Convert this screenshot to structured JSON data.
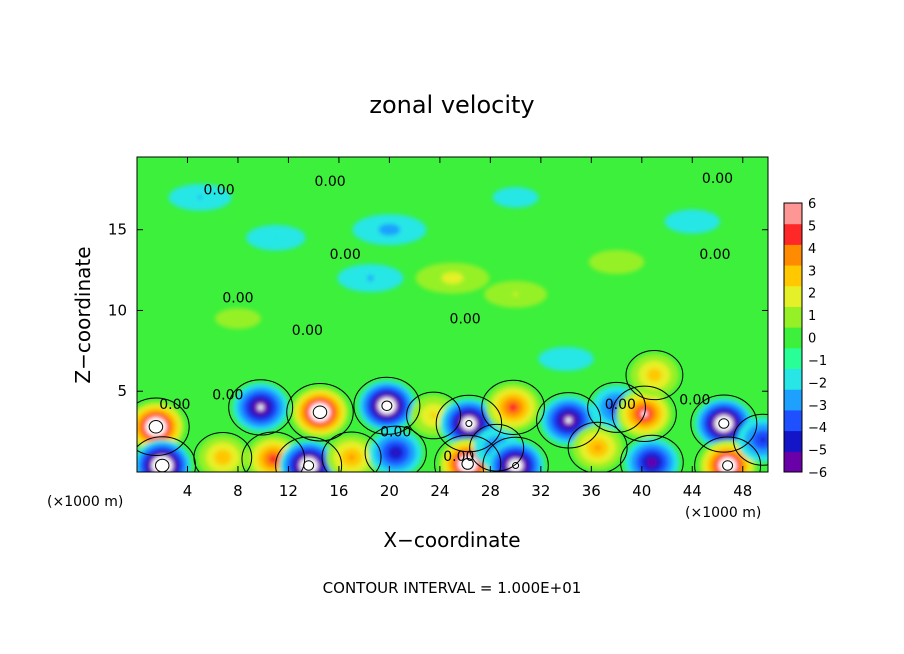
{
  "chart_data": {
    "type": "heatmap",
    "title": "zonal velocity",
    "xlabel": "X−coordinate",
    "ylabel": "Z−coordinate",
    "x_unit_left": "(×1000 m)",
    "x_unit_right": "(×1000 m)",
    "footer": "CONTOUR INTERVAL = 1.000E+01",
    "xlim": [
      0,
      50
    ],
    "ylim": [
      0,
      19.5
    ],
    "x_ticks": [
      {
        "value": 4,
        "label": "4"
      },
      {
        "value": 8,
        "label": "8"
      },
      {
        "value": 12,
        "label": "12"
      },
      {
        "value": 16,
        "label": "16"
      },
      {
        "value": 20,
        "label": "20"
      },
      {
        "value": 24,
        "label": "24"
      },
      {
        "value": 28,
        "label": "28"
      },
      {
        "value": 32,
        "label": "32"
      },
      {
        "value": 36,
        "label": "36"
      },
      {
        "value": 40,
        "label": "40"
      },
      {
        "value": 44,
        "label": "44"
      },
      {
        "value": 48,
        "label": "48"
      }
    ],
    "y_ticks": [
      {
        "value": 5,
        "label": "5"
      },
      {
        "value": 10,
        "label": "10"
      },
      {
        "value": 15,
        "label": "15"
      }
    ],
    "colorbar": {
      "min": -6,
      "max": 6,
      "levels": [
        {
          "value": 6,
          "label": "6"
        },
        {
          "value": 5,
          "label": "5"
        },
        {
          "value": 4,
          "label": "4"
        },
        {
          "value": 3,
          "label": "3"
        },
        {
          "value": 2,
          "label": "2"
        },
        {
          "value": 1,
          "label": "1"
        },
        {
          "value": 0,
          "label": "0"
        },
        {
          "value": -1,
          "label": "−1"
        },
        {
          "value": -2,
          "label": "−2"
        },
        {
          "value": -3,
          "label": "−3"
        },
        {
          "value": -4,
          "label": "−4"
        },
        {
          "value": -5,
          "label": "−5"
        },
        {
          "value": -6,
          "label": "−6"
        }
      ],
      "colors": [
        "#6a00a8",
        "#1414c8",
        "#1e50ff",
        "#1ea0ff",
        "#28e6e6",
        "#28ff96",
        "#3cf03c",
        "#96f028",
        "#e6f028",
        "#ffc800",
        "#ff8c00",
        "#ff2828",
        "#ff9696"
      ]
    },
    "features": [
      {
        "x": 1.5,
        "z": 2.8,
        "value": 7.5
      },
      {
        "x": 2.0,
        "z": 0.4,
        "value": -7.5
      },
      {
        "x": 6.8,
        "z": 0.9,
        "value": 3.2
      },
      {
        "x": 9.8,
        "z": 4.0,
        "value": -5.5
      },
      {
        "x": 10.8,
        "z": 0.8,
        "value": 4.8
      },
      {
        "x": 14.5,
        "z": 3.7,
        "value": 7.5
      },
      {
        "x": 13.6,
        "z": 0.4,
        "value": -7.0
      },
      {
        "x": 17.0,
        "z": 0.9,
        "value": 3.5
      },
      {
        "x": 19.8,
        "z": 4.1,
        "value": -7.0
      },
      {
        "x": 20.5,
        "z": 1.2,
        "value": -4.2
      },
      {
        "x": 23.5,
        "z": 3.5,
        "value": 2.5
      },
      {
        "x": 26.3,
        "z": 3.0,
        "value": -6.5
      },
      {
        "x": 26.2,
        "z": 0.5,
        "value": 7.2
      },
      {
        "x": 28.5,
        "z": 1.5,
        "value": -2.5
      },
      {
        "x": 29.8,
        "z": 4.0,
        "value": 4.8
      },
      {
        "x": 30.0,
        "z": 0.4,
        "value": -6.5
      },
      {
        "x": 34.2,
        "z": 3.2,
        "value": -5.5
      },
      {
        "x": 36.5,
        "z": 1.5,
        "value": 3.5
      },
      {
        "x": 38.0,
        "z": 4.0,
        "value": -3.2
      },
      {
        "x": 40.2,
        "z": 3.6,
        "value": 5.5
      },
      {
        "x": 41.0,
        "z": 6.0,
        "value": 3.0
      },
      {
        "x": 40.8,
        "z": 0.6,
        "value": -4.8
      },
      {
        "x": 46.5,
        "z": 3.0,
        "value": -7.0
      },
      {
        "x": 46.8,
        "z": 0.4,
        "value": 7.0
      },
      {
        "x": 49.6,
        "z": 2.0,
        "value": -3.5
      },
      {
        "x": 18.5,
        "z": 12.0,
        "value": -1.5
      },
      {
        "x": 20.0,
        "z": 15.0,
        "value": -1.8
      },
      {
        "x": 11.0,
        "z": 14.5,
        "value": -1.3
      },
      {
        "x": 25.0,
        "z": 12.0,
        "value": 1.8
      },
      {
        "x": 30.0,
        "z": 11.0,
        "value": 1.4
      },
      {
        "x": 38.0,
        "z": 13.0,
        "value": 1.2
      },
      {
        "x": 44.0,
        "z": 15.5,
        "value": -1.2
      },
      {
        "x": 5.0,
        "z": 17.0,
        "value": -1.4
      },
      {
        "x": 30.0,
        "z": 17.0,
        "value": -1.0
      },
      {
        "x": 8.0,
        "z": 9.5,
        "value": 1.0
      },
      {
        "x": 34.0,
        "z": 7.0,
        "value": -1.2
      }
    ],
    "contour_labels": [
      {
        "text": "0.00",
        "x": 6.5,
        "z": 17.5
      },
      {
        "text": "0.00",
        "x": 15.3,
        "z": 18.0
      },
      {
        "text": "0.00",
        "x": 46.0,
        "z": 18.2
      },
      {
        "text": "0.00",
        "x": 16.5,
        "z": 13.5
      },
      {
        "text": "0.00",
        "x": 45.8,
        "z": 13.5
      },
      {
        "text": "0.00",
        "x": 8.0,
        "z": 10.8
      },
      {
        "text": "0.00",
        "x": 13.5,
        "z": 8.8
      },
      {
        "text": "0.00",
        "x": 26.0,
        "z": 9.5
      },
      {
        "text": "0.00",
        "x": 3.0,
        "z": 4.2
      },
      {
        "text": "0.00",
        "x": 7.2,
        "z": 4.8
      },
      {
        "text": "0.00",
        "x": 20.5,
        "z": 2.5
      },
      {
        "text": "0.00",
        "x": 25.5,
        "z": 1.0
      },
      {
        "text": "0.00",
        "x": 38.3,
        "z": 4.2
      },
      {
        "text": "0.00",
        "x": 44.2,
        "z": 4.5
      }
    ]
  }
}
